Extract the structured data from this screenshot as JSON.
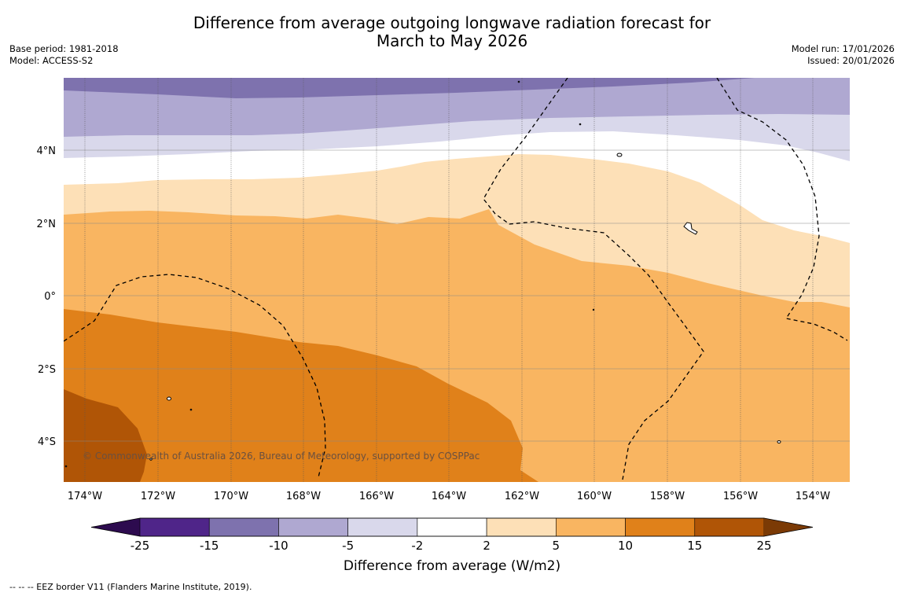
{
  "title_line1": "Difference from average outgoing longwave radiation forecast for",
  "title_line2": "March to May 2026",
  "base_period": "Base period: 1981-2018",
  "model": "Model: ACCESS-S2",
  "model_run": "Model run: 17/01/2026",
  "issued": "Issued: 20/01/2026",
  "copyright": "© Commonwealth of Australia 2026, Bureau of Meteorology, supported by COSPPac",
  "map": {
    "longitudes": [
      "174°W",
      "172°W",
      "170°W",
      "168°W",
      "166°W",
      "164°W",
      "162°W",
      "160°W",
      "158°W",
      "156°W",
      "154°W"
    ],
    "latitudes": [
      "4°N",
      "2°N",
      "0°",
      "2°S",
      "4°S"
    ]
  },
  "colorbar": {
    "label": "Difference from average (W/m2)",
    "ticks": [
      "-25",
      "-15",
      "-10",
      "-5",
      "-2",
      "2",
      "5",
      "10",
      "15",
      "25"
    ],
    "colors": [
      "#4f2589",
      "#7e72ae",
      "#afa8d1",
      "#d9d8eb",
      "#ffffff",
      "#fde0b7",
      "#f9b561",
      "#e0811a",
      "#b05506"
    ],
    "extend_low": "#2d0b4f",
    "extend_high": "#7b3a05"
  },
  "legend_note": "--  --  -- EEZ border V11 (Flanders Marine Institute, 2019)."
}
